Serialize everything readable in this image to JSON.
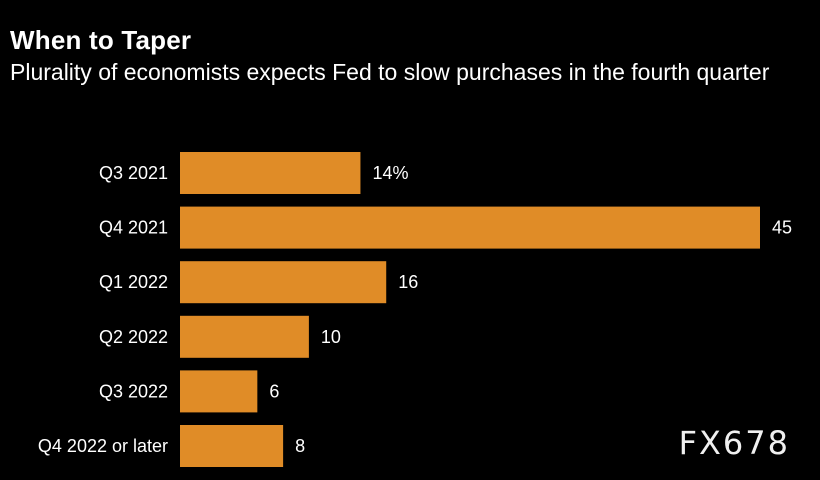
{
  "header": {
    "title": "When to Taper",
    "subtitle": "Plurality of economists expects Fed to slow purchases in the fourth quarter"
  },
  "watermark": "FX678",
  "colors": {
    "background": "#000000",
    "bar": "#E08C27",
    "text": "#FFFFFF"
  },
  "chart_data": {
    "type": "bar",
    "orientation": "horizontal",
    "title": "When to Taper",
    "subtitle": "Plurality of economists expects Fed to slow purchases in the fourth quarter",
    "categories": [
      "Q3 2021",
      "Q4 2021",
      "Q1 2022",
      "Q2 2022",
      "Q3 2022",
      "Q4 2022 or later"
    ],
    "values": [
      14,
      45,
      16,
      10,
      6,
      8
    ],
    "value_labels": [
      "14%",
      "45",
      "16",
      "10",
      "6",
      "8"
    ],
    "unit": "%",
    "xlabel": "",
    "ylabel": "",
    "xlim": [
      0,
      45
    ],
    "grid": false,
    "legend": "none"
  }
}
